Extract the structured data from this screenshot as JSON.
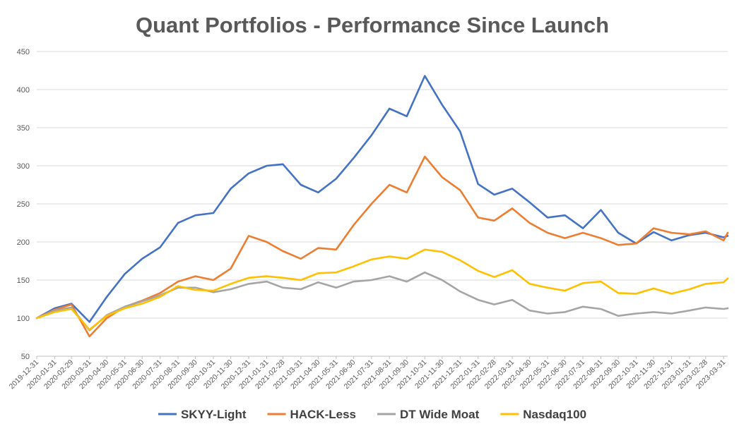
{
  "chart_data": {
    "type": "line",
    "title": "Quant Portfolios - Performance Since Launch",
    "xlabel": "",
    "ylabel": "",
    "ylim": [
      50,
      450
    ],
    "yticks": [
      50,
      100,
      150,
      200,
      250,
      300,
      350,
      400,
      450
    ],
    "grid": "horizontal",
    "legend_position": "bottom",
    "x_tick_labels": [
      "2019-12-31",
      "2020-01-31",
      "2020-02-29",
      "2020-03-31",
      "2020-04-30",
      "2020-05-31",
      "2020-06-30",
      "2020-07-31",
      "2020-08-31",
      "2020-09-30",
      "2020-10-31",
      "2020-11-30",
      "2020-12-31",
      "2021-01-31",
      "2021-02-28",
      "2021-03-31",
      "2021-04-30",
      "2021-05-31",
      "2021-06-30",
      "2021-07-31",
      "2021-08-31",
      "2021-09-30",
      "2021-10-31",
      "2021-11-30",
      "2021-12-31",
      "2022-01-31",
      "2022-02-28",
      "2022-03-31",
      "2022-04-30",
      "2022-05-31",
      "2022-06-30",
      "2022-07-31",
      "2022-08-31",
      "2022-09-30",
      "2022-10-31",
      "2022-11-30",
      "2022-12-31",
      "2023-01-31",
      "2023-02-28",
      "2023-03-31"
    ],
    "x": [
      "2019-12-31",
      "2020-01-31",
      "2020-02-29",
      "2020-03-31",
      "2020-04-30",
      "2020-05-31",
      "2020-06-30",
      "2020-07-31",
      "2020-08-31",
      "2020-09-30",
      "2020-10-31",
      "2020-11-30",
      "2020-12-31",
      "2021-01-31",
      "2021-02-28",
      "2021-03-31",
      "2021-04-30",
      "2021-05-31",
      "2021-06-30",
      "2021-07-31",
      "2021-08-31",
      "2021-09-30",
      "2021-10-31",
      "2021-11-30",
      "2021-12-31",
      "2022-01-31",
      "2022-02-28",
      "2022-03-31",
      "2022-04-30",
      "2022-05-31",
      "2022-06-30",
      "2022-07-31",
      "2022-08-31",
      "2022-09-30",
      "2022-10-31",
      "2022-11-30",
      "2022-12-31",
      "2023-01-31",
      "2023-02-28",
      "2023-03-31",
      "2023-04-07"
    ],
    "series": [
      {
        "name": "SKYY-Light",
        "color": "#4472C4",
        "values": [
          100,
          113,
          119,
          95,
          128,
          158,
          178,
          193,
          225,
          235,
          238,
          270,
          290,
          300,
          302,
          275,
          265,
          283,
          310,
          340,
          375,
          365,
          418,
          380,
          345,
          276,
          262,
          270,
          252,
          232,
          235,
          218,
          242,
          212,
          198,
          213,
          202,
          209,
          212,
          206,
          208
        ]
      },
      {
        "name": "HACK-Less",
        "color": "#ED7D31",
        "values": [
          100,
          111,
          118,
          76,
          100,
          115,
          123,
          133,
          148,
          155,
          150,
          165,
          208,
          200,
          188,
          178,
          192,
          190,
          222,
          250,
          275,
          265,
          312,
          285,
          268,
          232,
          228,
          244,
          225,
          212,
          205,
          212,
          205,
          196,
          198,
          218,
          212,
          210,
          214,
          202,
          212
        ]
      },
      {
        "name": "DT Wide Moat",
        "color": "#A5A5A5",
        "values": [
          100,
          110,
          114,
          84,
          104,
          115,
          122,
          130,
          140,
          140,
          134,
          138,
          145,
          148,
          140,
          138,
          147,
          140,
          148,
          150,
          155,
          148,
          160,
          150,
          135,
          124,
          118,
          124,
          110,
          106,
          108,
          115,
          112,
          103,
          106,
          108,
          106,
          110,
          114,
          112,
          113
        ]
      },
      {
        "name": "Nasdaq100",
        "color": "#FFC000",
        "values": [
          100,
          108,
          112,
          85,
          103,
          113,
          119,
          128,
          142,
          137,
          136,
          145,
          153,
          155,
          153,
          150,
          159,
          160,
          168,
          177,
          181,
          178,
          190,
          187,
          176,
          162,
          154,
          163,
          145,
          140,
          136,
          146,
          148,
          133,
          132,
          139,
          132,
          138,
          145,
          147,
          152
        ]
      }
    ]
  }
}
